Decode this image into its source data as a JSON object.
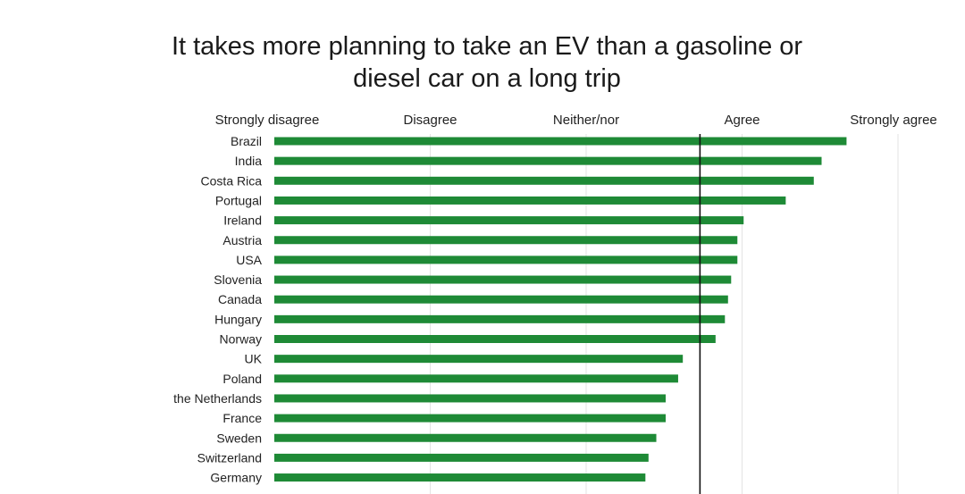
{
  "chart_data": {
    "type": "bar",
    "orientation": "horizontal",
    "title_lines": [
      "It takes more planning to take an EV than a gasoline or",
      "diesel car on a long trip"
    ],
    "scale_labels": [
      "Strongly disagree",
      "Disagree",
      "Neither/nor",
      "Agree",
      "Strongly agree"
    ],
    "scale_values": [
      1,
      2,
      3,
      4,
      5
    ],
    "xlim": [
      1,
      5
    ],
    "reference_line": 3.73,
    "categories": [
      "Brazil",
      "India",
      "Costa Rica",
      "Portugal",
      "Ireland",
      "Austria",
      "USA",
      "Slovenia",
      "Canada",
      "Hungary",
      "Norway",
      "UK",
      "Poland",
      "the Netherlands",
      "France",
      "Sweden",
      "Switzerland",
      "Germany"
    ],
    "values": [
      4.67,
      4.51,
      4.46,
      4.28,
      4.01,
      3.97,
      3.97,
      3.93,
      3.91,
      3.89,
      3.83,
      3.62,
      3.59,
      3.51,
      3.51,
      3.45,
      3.4,
      3.38
    ],
    "bar_color": "#1e8a36",
    "grid": true
  }
}
